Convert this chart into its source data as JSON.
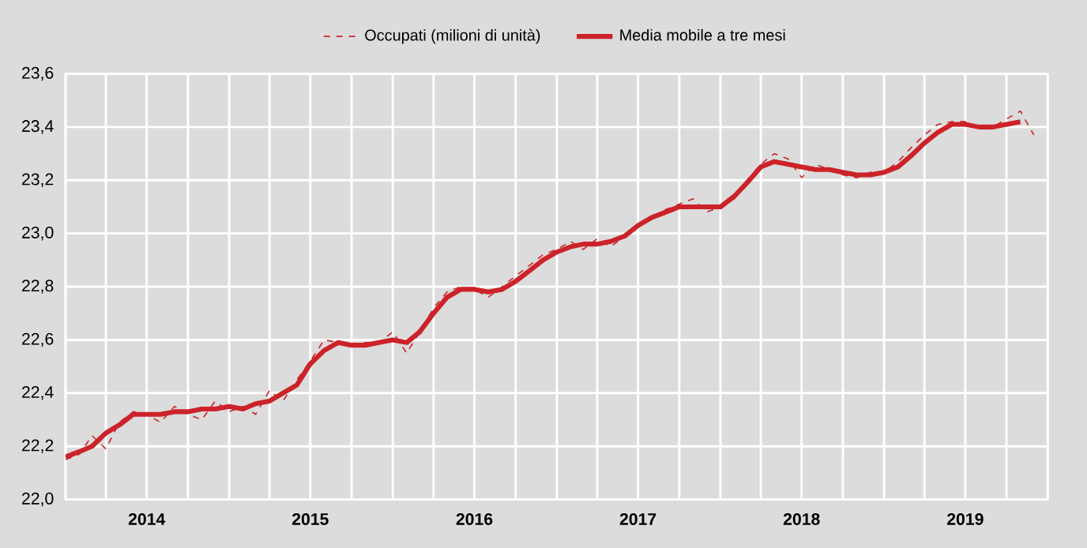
{
  "chart_data": {
    "type": "line",
    "x": [
      "2014-01",
      "2014-02",
      "2014-03",
      "2014-04",
      "2014-05",
      "2014-06",
      "2014-07",
      "2014-08",
      "2014-09",
      "2014-10",
      "2014-11",
      "2014-12",
      "2015-01",
      "2015-02",
      "2015-03",
      "2015-04",
      "2015-05",
      "2015-06",
      "2015-07",
      "2015-08",
      "2015-09",
      "2015-10",
      "2015-11",
      "2015-12",
      "2016-01",
      "2016-02",
      "2016-03",
      "2016-04",
      "2016-05",
      "2016-06",
      "2016-07",
      "2016-08",
      "2016-09",
      "2016-10",
      "2016-11",
      "2016-12",
      "2017-01",
      "2017-02",
      "2017-03",
      "2017-04",
      "2017-05",
      "2017-06",
      "2017-07",
      "2017-08",
      "2017-09",
      "2017-10",
      "2017-11",
      "2017-12",
      "2018-01",
      "2018-02",
      "2018-03",
      "2018-04",
      "2018-05",
      "2018-06",
      "2018-07",
      "2018-08",
      "2018-09",
      "2018-10",
      "2018-11",
      "2018-12",
      "2019-01",
      "2019-02",
      "2019-03",
      "2019-04",
      "2019-05",
      "2019-06",
      "2019-07",
      "2019-08",
      "2019-09",
      "2019-10",
      "2019-11",
      "2019-12"
    ],
    "series": [
      {
        "name": "Occupati (milioni di unità)",
        "color": "#cc2229",
        "line_style": "dashed",
        "values": [
          22.15,
          22.17,
          22.24,
          22.19,
          22.29,
          22.33,
          22.32,
          22.29,
          22.35,
          22.32,
          22.3,
          22.37,
          22.33,
          22.35,
          22.32,
          22.41,
          22.37,
          22.45,
          22.52,
          22.6,
          22.59,
          22.58,
          22.59,
          22.59,
          22.63,
          22.55,
          22.63,
          22.72,
          22.78,
          22.8,
          22.79,
          22.76,
          22.8,
          22.84,
          22.88,
          22.92,
          22.94,
          22.97,
          22.94,
          22.98,
          22.95,
          22.99,
          23.03,
          23.06,
          23.09,
          23.11,
          23.13,
          23.08,
          23.1,
          23.13,
          23.2,
          23.26,
          23.3,
          23.28,
          23.21,
          23.26,
          23.24,
          23.22,
          23.21,
          23.23,
          23.23,
          23.27,
          23.32,
          23.37,
          23.41,
          23.42,
          23.42,
          23.4,
          23.4,
          23.43,
          23.46,
          23.37
        ]
      },
      {
        "name": "Media mobile a tre mesi",
        "color": "#cc2229",
        "line_style": "solid",
        "values": [
          22.16,
          22.18,
          22.2,
          22.25,
          22.28,
          22.32,
          22.32,
          22.32,
          22.33,
          22.33,
          22.34,
          22.34,
          22.35,
          22.34,
          22.36,
          22.37,
          22.4,
          22.43,
          22.51,
          22.56,
          22.59,
          22.58,
          22.58,
          22.59,
          22.6,
          22.59,
          22.63,
          22.7,
          22.76,
          22.79,
          22.79,
          22.78,
          22.79,
          22.82,
          22.86,
          22.9,
          22.93,
          22.95,
          22.96,
          22.96,
          22.97,
          22.99,
          23.03,
          23.06,
          23.08,
          23.1,
          23.1,
          23.1,
          23.1,
          23.14,
          23.19,
          23.25,
          23.27,
          23.26,
          23.25,
          23.24,
          23.24,
          23.23,
          23.22,
          23.22,
          23.23,
          23.25,
          23.29,
          23.34,
          23.38,
          23.41,
          23.41,
          23.4,
          23.4,
          23.41,
          23.42,
          null
        ]
      }
    ],
    "xlim": [
      "2014-01-01",
      "2020-01-01"
    ],
    "xticks": [
      {
        "value": "2014-01-01",
        "label": null
      },
      {
        "value": "2014-04-01",
        "label": null
      },
      {
        "value": "2014-07-01",
        "label": "2014"
      },
      {
        "value": "2014-10-01",
        "label": null
      },
      {
        "value": "2015-01-01",
        "label": null
      },
      {
        "value": "2015-04-01",
        "label": null
      },
      {
        "value": "2015-07-01",
        "label": "2015"
      },
      {
        "value": "2015-10-01",
        "label": null
      },
      {
        "value": "2016-01-01",
        "label": null
      },
      {
        "value": "2016-04-01",
        "label": null
      },
      {
        "value": "2016-07-01",
        "label": "2016"
      },
      {
        "value": "2016-10-01",
        "label": null
      },
      {
        "value": "2017-01-01",
        "label": null
      },
      {
        "value": "2017-04-01",
        "label": null
      },
      {
        "value": "2017-07-01",
        "label": "2017"
      },
      {
        "value": "2017-10-01",
        "label": null
      },
      {
        "value": "2018-01-01",
        "label": null
      },
      {
        "value": "2018-04-01",
        "label": null
      },
      {
        "value": "2018-07-01",
        "label": "2018"
      },
      {
        "value": "2018-10-01",
        "label": null
      },
      {
        "value": "2019-01-01",
        "label": null
      },
      {
        "value": "2019-04-01",
        "label": null
      },
      {
        "value": "2019-07-01",
        "label": "2019"
      },
      {
        "value": "2019-10-01",
        "label": null
      },
      {
        "value": "2020-01-01",
        "label": null
      }
    ],
    "ylim": [
      22.0,
      23.6
    ],
    "yticks": [
      {
        "value": 22.0,
        "label": "22,0"
      },
      {
        "value": 22.2,
        "label": "22,2"
      },
      {
        "value": 22.4,
        "label": "22,4"
      },
      {
        "value": 22.6,
        "label": "22,6"
      },
      {
        "value": 22.8,
        "label": "22,8"
      },
      {
        "value": 23.0,
        "label": "23,0"
      },
      {
        "value": 23.2,
        "label": "23,2"
      },
      {
        "value": 23.4,
        "label": "23,4"
      },
      {
        "value": 23.6,
        "label": "23,6"
      }
    ],
    "grid": true,
    "legend": "top"
  }
}
